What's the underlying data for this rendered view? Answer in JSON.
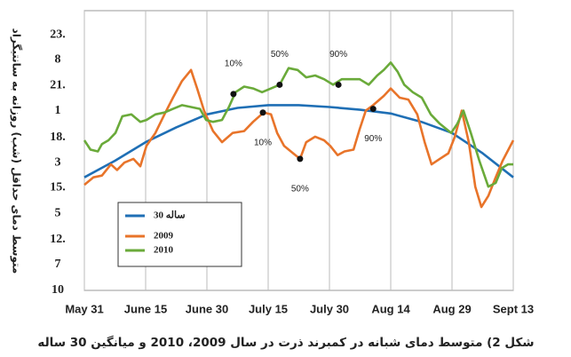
{
  "chart_data": {
    "type": "line",
    "y_label": "متوسط دمای حداقل (شب) روزانه به سانتیگراد",
    "caption": "شکل 2) متوسط دمای شبانه در کمبرند ذرت در سال 2009، 2010 و میانگین 30 ساله",
    "xlim": [
      0,
      105
    ],
    "xticks": [
      {
        "value": 0,
        "label": "May 31"
      },
      {
        "value": 15,
        "label": "June 15"
      },
      {
        "value": 30,
        "label": "June 30"
      },
      {
        "value": 45,
        "label": "July 15"
      },
      {
        "value": 60,
        "label": "July 30"
      },
      {
        "value": 75,
        "label": "Aug 14"
      },
      {
        "value": 90,
        "label": "Aug 29"
      },
      {
        "value": 105,
        "label": "Sept 13"
      }
    ],
    "ylim": [
      10,
      25.1
    ],
    "yticks": [
      {
        "value": 23.8,
        "label": "23."
      },
      {
        "value": 22.45,
        "label": "8"
      },
      {
        "value": 21.05,
        "label": "21."
      },
      {
        "value": 19.7,
        "label": "1"
      },
      {
        "value": 18.25,
        "label": "18."
      },
      {
        "value": 16.9,
        "label": "3"
      },
      {
        "value": 15.55,
        "label": "15."
      },
      {
        "value": 14.15,
        "label": "5"
      },
      {
        "value": 12.75,
        "label": "12."
      },
      {
        "value": 11.4,
        "label": "7"
      },
      10
    ],
    "grid": "x",
    "series": [
      {
        "name": "30 ساله",
        "color": "#1f6fb5",
        "x": [
          0,
          7.5,
          15,
          22.5,
          30,
          37.5,
          45,
          52.5,
          60,
          67.5,
          75,
          82.5,
          90,
          97.5,
          105
        ],
        "values": [
          16.1,
          17.0,
          18.0,
          18.8,
          19.5,
          19.85,
          20.0,
          20.0,
          19.9,
          19.75,
          19.55,
          19.1,
          18.5,
          17.4,
          16.1
        ]
      },
      {
        "name": "2009",
        "color": "#e8742a",
        "x": [
          0,
          2.2,
          4.3,
          6.5,
          8.0,
          9.8,
          12.0,
          13.7,
          15.2,
          17.4,
          19.6,
          21.7,
          23.9,
          26.1,
          27.6,
          29.3,
          31.5,
          33.7,
          36.3,
          39.1,
          41.3,
          43.9,
          45.7,
          47.2,
          48.9,
          51.1,
          52.8,
          54.3,
          56.5,
          58.7,
          60.2,
          62.0,
          63.7,
          65.9,
          67.4,
          68.9,
          70.7,
          73.3,
          75.0,
          77.2,
          79.3,
          81.5,
          83.3,
          85.0,
          87.0,
          89.1,
          90.7,
          92.4,
          94.1,
          95.7,
          97.2,
          98.9,
          100.7,
          102.4,
          105
        ],
        "values": [
          15.7,
          16.1,
          16.2,
          16.8,
          16.5,
          16.9,
          17.1,
          16.7,
          17.8,
          18.5,
          19.5,
          20.4,
          21.3,
          21.9,
          20.9,
          19.7,
          18.6,
          18.0,
          18.5,
          18.6,
          19.1,
          19.6,
          19.5,
          18.5,
          17.8,
          17.4,
          17.1,
          18.0,
          18.3,
          18.1,
          17.8,
          17.3,
          17.5,
          17.6,
          18.7,
          19.7,
          20.0,
          20.5,
          20.9,
          20.4,
          20.3,
          19.5,
          18.0,
          16.8,
          17.1,
          17.4,
          18.3,
          19.7,
          18.0,
          15.6,
          14.5,
          15.1,
          16.1,
          17.0,
          18.1
        ]
      },
      {
        "name": "2010",
        "color": "#6aaa3a",
        "x": [
          0,
          1.5,
          3.3,
          4.3,
          5.9,
          7.6,
          9.3,
          11.5,
          13.7,
          15.2,
          17.4,
          19.6,
          21.7,
          23.9,
          26.1,
          28.3,
          29.8,
          31.5,
          33.7,
          35.4,
          37.0,
          39.1,
          41.3,
          43.5,
          45.7,
          47.8,
          50.0,
          52.2,
          54.3,
          56.5,
          58.7,
          60.9,
          63.0,
          65.2,
          67.4,
          69.6,
          71.7,
          73.3,
          75.0,
          76.7,
          78.3,
          80.4,
          82.6,
          84.8,
          87.0,
          89.8,
          91.3,
          92.8,
          94.6,
          96.7,
          98.9,
          100.7,
          102.2,
          103.7,
          105
        ],
        "values": [
          18.1,
          17.6,
          17.5,
          17.9,
          18.1,
          18.5,
          19.4,
          19.5,
          19.1,
          19.2,
          19.5,
          19.6,
          19.8,
          20.0,
          19.9,
          19.8,
          19.2,
          19.1,
          19.2,
          19.9,
          20.7,
          21.0,
          20.9,
          20.7,
          20.9,
          21.1,
          22.0,
          21.9,
          21.5,
          21.6,
          21.4,
          21.1,
          21.4,
          21.4,
          21.4,
          21.1,
          21.6,
          21.9,
          22.3,
          21.8,
          21.1,
          20.7,
          20.4,
          19.5,
          19.0,
          18.5,
          19.0,
          19.7,
          18.5,
          17.0,
          15.6,
          15.8,
          16.6,
          16.8,
          16.8
        ]
      }
    ],
    "annotations": [
      {
        "x": 36.5,
        "y": 20.6,
        "text": "10%",
        "position": "above"
      },
      {
        "x": 47.8,
        "y": 21.1,
        "text": "50%",
        "position": "above"
      },
      {
        "x": 62.2,
        "y": 21.1,
        "text": "90%",
        "position": "above"
      },
      {
        "x": 43.7,
        "y": 19.6,
        "text": "10%",
        "position": "below"
      },
      {
        "x": 52.8,
        "y": 17.1,
        "text": "50%",
        "position": "below"
      },
      {
        "x": 70.7,
        "y": 19.8,
        "text": "90%",
        "position": "below"
      }
    ]
  }
}
